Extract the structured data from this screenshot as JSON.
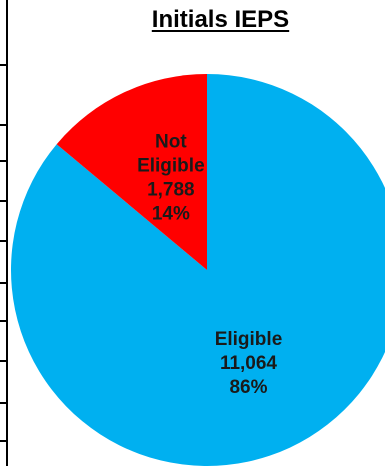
{
  "chart_data": {
    "type": "pie",
    "title": "Initials IEPS",
    "categories": [
      "Eligible",
      "Not Eligible"
    ],
    "values": [
      11064,
      1788
    ],
    "value_labels": [
      "11,064",
      "1,788"
    ],
    "percent_labels": [
      "86%",
      "14%"
    ],
    "label_lines": [
      [
        "Eligible",
        "11,064",
        "86%"
      ],
      [
        "Not",
        "Eligible",
        "1,788",
        "14%"
      ]
    ],
    "colors": [
      "#00B0F0",
      "#FF0000"
    ],
    "label_colors": [
      "#1a1a1a",
      "#1a1a1a"
    ],
    "legend": "none",
    "grid": false
  }
}
